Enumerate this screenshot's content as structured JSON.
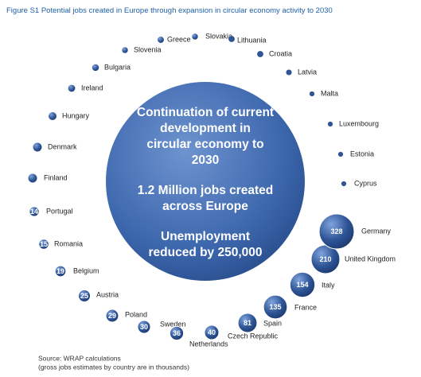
{
  "chart_data": {
    "type": "bubble",
    "title": "Figure S1 Potential jobs created in Europe through expansion in circular economy activity to 2030",
    "center_text": [
      "Continuation of current",
      "development in",
      "circular economy to",
      "2030",
      "1.2 Million jobs created",
      "across Europe",
      "Unemployment",
      "reduced by 250,000"
    ],
    "categories": [
      "Greece",
      "Slovakia",
      "Lithuania",
      "Slovenia",
      "Croatia",
      "Bulgaria",
      "Latvia",
      "Ireland",
      "Malta",
      "Hungary",
      "Luxembourg",
      "Denmark",
      "Estonia",
      "Finland",
      "Cyprus",
      "Portugal",
      "Romania",
      "Belgium",
      "Austria",
      "Poland",
      "Sweden",
      "Netherlands",
      "Czech Republic",
      "Spain",
      "France",
      "Italy",
      "United Kingdom",
      "Germany"
    ],
    "values": [
      5,
      4,
      3,
      4,
      3,
      6,
      2,
      7,
      1,
      10,
      1,
      13,
      1,
      13,
      1,
      14,
      15,
      19,
      25,
      29,
      30,
      36,
      40,
      81,
      135,
      154,
      210,
      328
    ],
    "color": "#2f5597",
    "footnotes": [
      "Source:  WRAP calculations",
      "(gross jobs estimates by country are in thousands)"
    ]
  }
}
